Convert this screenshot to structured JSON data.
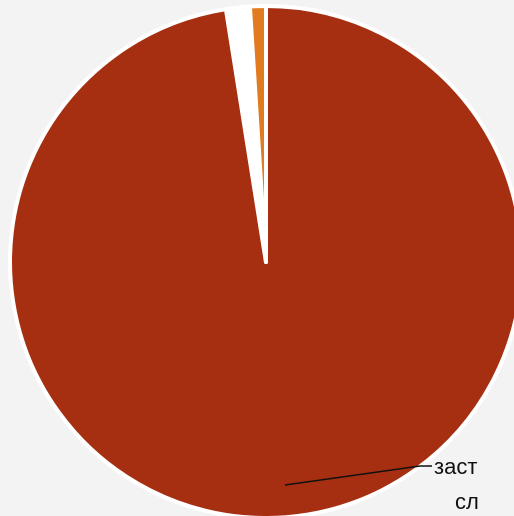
{
  "chart_data": {
    "type": "pie",
    "title": "",
    "slices": [
      {
        "label": "заст",
        "value": 97.5,
        "color": "#a52f10"
      },
      {
        "label": "",
        "value": 1.5,
        "color": "#ffffff"
      },
      {
        "label": "",
        "value": 1.0,
        "color": "#e07b1f"
      }
    ],
    "labels_visible": [
      "заст",
      "сл"
    ],
    "legend": "none",
    "start_angle_deg": 0,
    "direction": "clockwise"
  },
  "colors": {
    "background": "#f3f3f3",
    "primary": "#a52f10",
    "accent": "#e07b1f"
  }
}
